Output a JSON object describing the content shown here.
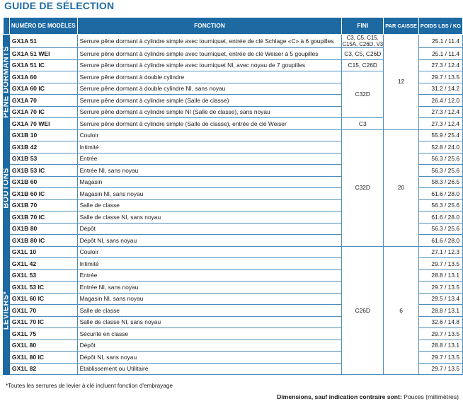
{
  "title": "GUIDE DE SÉLECTION",
  "headers": {
    "model": "NUMÉRO DE MODÈLES",
    "function": "FONCTION",
    "fini": "FINI",
    "par_caisse": "PAR CAISSE",
    "poids": "POIDS LBS / KG"
  },
  "groups": [
    {
      "label": "PÊNE DORMANTS",
      "fini_shared": "C32D",
      "par_caisse": "12",
      "rows": [
        {
          "model": "GX1A 51",
          "function": "Serrure pêne dormant à cylindre simple avec tourniquet, entrée de clé Schlage «C» à 6 goupilles",
          "fini": "C3, C5, C15, C15A, C26D, V3",
          "poids": "25.1 / 11.4"
        },
        {
          "model": "GX1A 51 WEI",
          "function": "Serrure pêne dormant à cylindre simple avec tourniquet, entrée de clé Weiser à 5 goupilles",
          "fini": "C3, C5, C26D",
          "poids": "25.1 / 11.4"
        },
        {
          "model": "GX1A 51 IC",
          "function": "Serrure pêne dormant à cylindre simple avec tourniquet NI, avec noyau de 7 goupilles",
          "fini": "C15, C26D",
          "poids": "27.3 / 12.4"
        },
        {
          "model": "GX1A 60",
          "function": "Serrure pêne dormant à double cylindre",
          "poids": "29.7 / 13.5"
        },
        {
          "model": "GX1A 60 IC",
          "function": "Serrure pêne dormant à double cylindre NI, sans noyau",
          "poids": "31.2 / 14.2"
        },
        {
          "model": "GX1A 70",
          "function": "Serrure pêne dormant à cylindre simple (Salle de classe)",
          "poids": "26.4 / 12.0"
        },
        {
          "model": "GX1A 70 IC",
          "function": "Serrure pêne dormant à cylindre simple NI (Salle de classe), sans noyau",
          "poids": "27.3 / 12.4"
        },
        {
          "model": "GX1A 70 WEI",
          "function": "Serrure pêne dormant à cylindre simple (Salle de classe),  entrée de clé Weiser",
          "fini": "C3",
          "poids": "27.3 / 12.4"
        }
      ]
    },
    {
      "label": "BOUTONS",
      "fini_shared": "C32D",
      "par_caisse": "20",
      "rows": [
        {
          "model": "GX1B 10",
          "function": "Couloir",
          "poids": "55.9 / 25.4"
        },
        {
          "model": "GX1B 42",
          "function": "Intimité",
          "poids": "52.8 / 24.0"
        },
        {
          "model": "GX1B 53",
          "function": "Entrée",
          "poids": "56.3 / 25.6"
        },
        {
          "model": "GX1B 53 IC",
          "function": "Entrée NI, sans noyau",
          "poids": "56.3 / 25.6"
        },
        {
          "model": "GX1B 60",
          "function": "Magasin",
          "poids": "58.3 / 26.5"
        },
        {
          "model": "GX1B 60 IC",
          "function": "Magasin NI, sans noyau",
          "poids": "61.6 / 28.0"
        },
        {
          "model": "GX1B 70",
          "function": "Salle de classe",
          "poids": "56.3 / 25.6"
        },
        {
          "model": "GX1B 70 IC",
          "function": "Salle de classe NI, sans noyau",
          "poids": "61.6 / 28.0"
        },
        {
          "model": "GX1B 80",
          "function": "Dépôt",
          "poids": "56.3 / 25.6"
        },
        {
          "model": "GX1B 80 IC",
          "function": "Dépôt NI, sans noyau",
          "poids": "61.6 / 28.0"
        }
      ]
    },
    {
      "label": "LEVIERS*",
      "fini_shared": "C26D",
      "par_caisse": "6",
      "rows": [
        {
          "model": "GX1L 10",
          "function": "Couloir",
          "poids": "27.1 / 12.3"
        },
        {
          "model": "GX1L 42",
          "function": "Intimité",
          "poids": "29.7 / 13.5"
        },
        {
          "model": "GX1L 53",
          "function": "Entrée",
          "poids": "28.8 / 13.1"
        },
        {
          "model": "GX1L 53 IC",
          "function": "Entrée  NI, sans noyau",
          "poids": "29.7 / 13.5"
        },
        {
          "model": "GX1L 60 IC",
          "function": "Magasin NI, sans noyau",
          "poids": "29.5 / 13.4"
        },
        {
          "model": "GX1L 70",
          "function": "Salle de classe",
          "poids": "28.8 / 13.1"
        },
        {
          "model": "GX1L 70 IC",
          "function": "Salle de classe NI, sans noyau",
          "poids": "32.6 / 14.8"
        },
        {
          "model": "GX1L 75",
          "function": "Sécurité en classe",
          "poids": "29.7 / 13.5"
        },
        {
          "model": "GX1L 80",
          "function": "Dépôt",
          "poids": "28.8 / 13.1"
        },
        {
          "model": "GX1L 80 IC",
          "function": "Dépôt NI, sans noyau",
          "poids": "29.7 / 13.5"
        },
        {
          "model": "GX1L 82",
          "function": "Établissement ou Utilitaire",
          "poids": "29.7 / 13.5"
        }
      ]
    }
  ],
  "footnote": "*Toutes les serrures de levier à clé incluent fonction d'embrayage",
  "dimensions_label": "Dimensions, sauf indication contraire sont:",
  "dimensions_value": "Pouces (millimètres)",
  "colors": {
    "header": "#1d6aa3",
    "border": "#4f8fbd"
  }
}
